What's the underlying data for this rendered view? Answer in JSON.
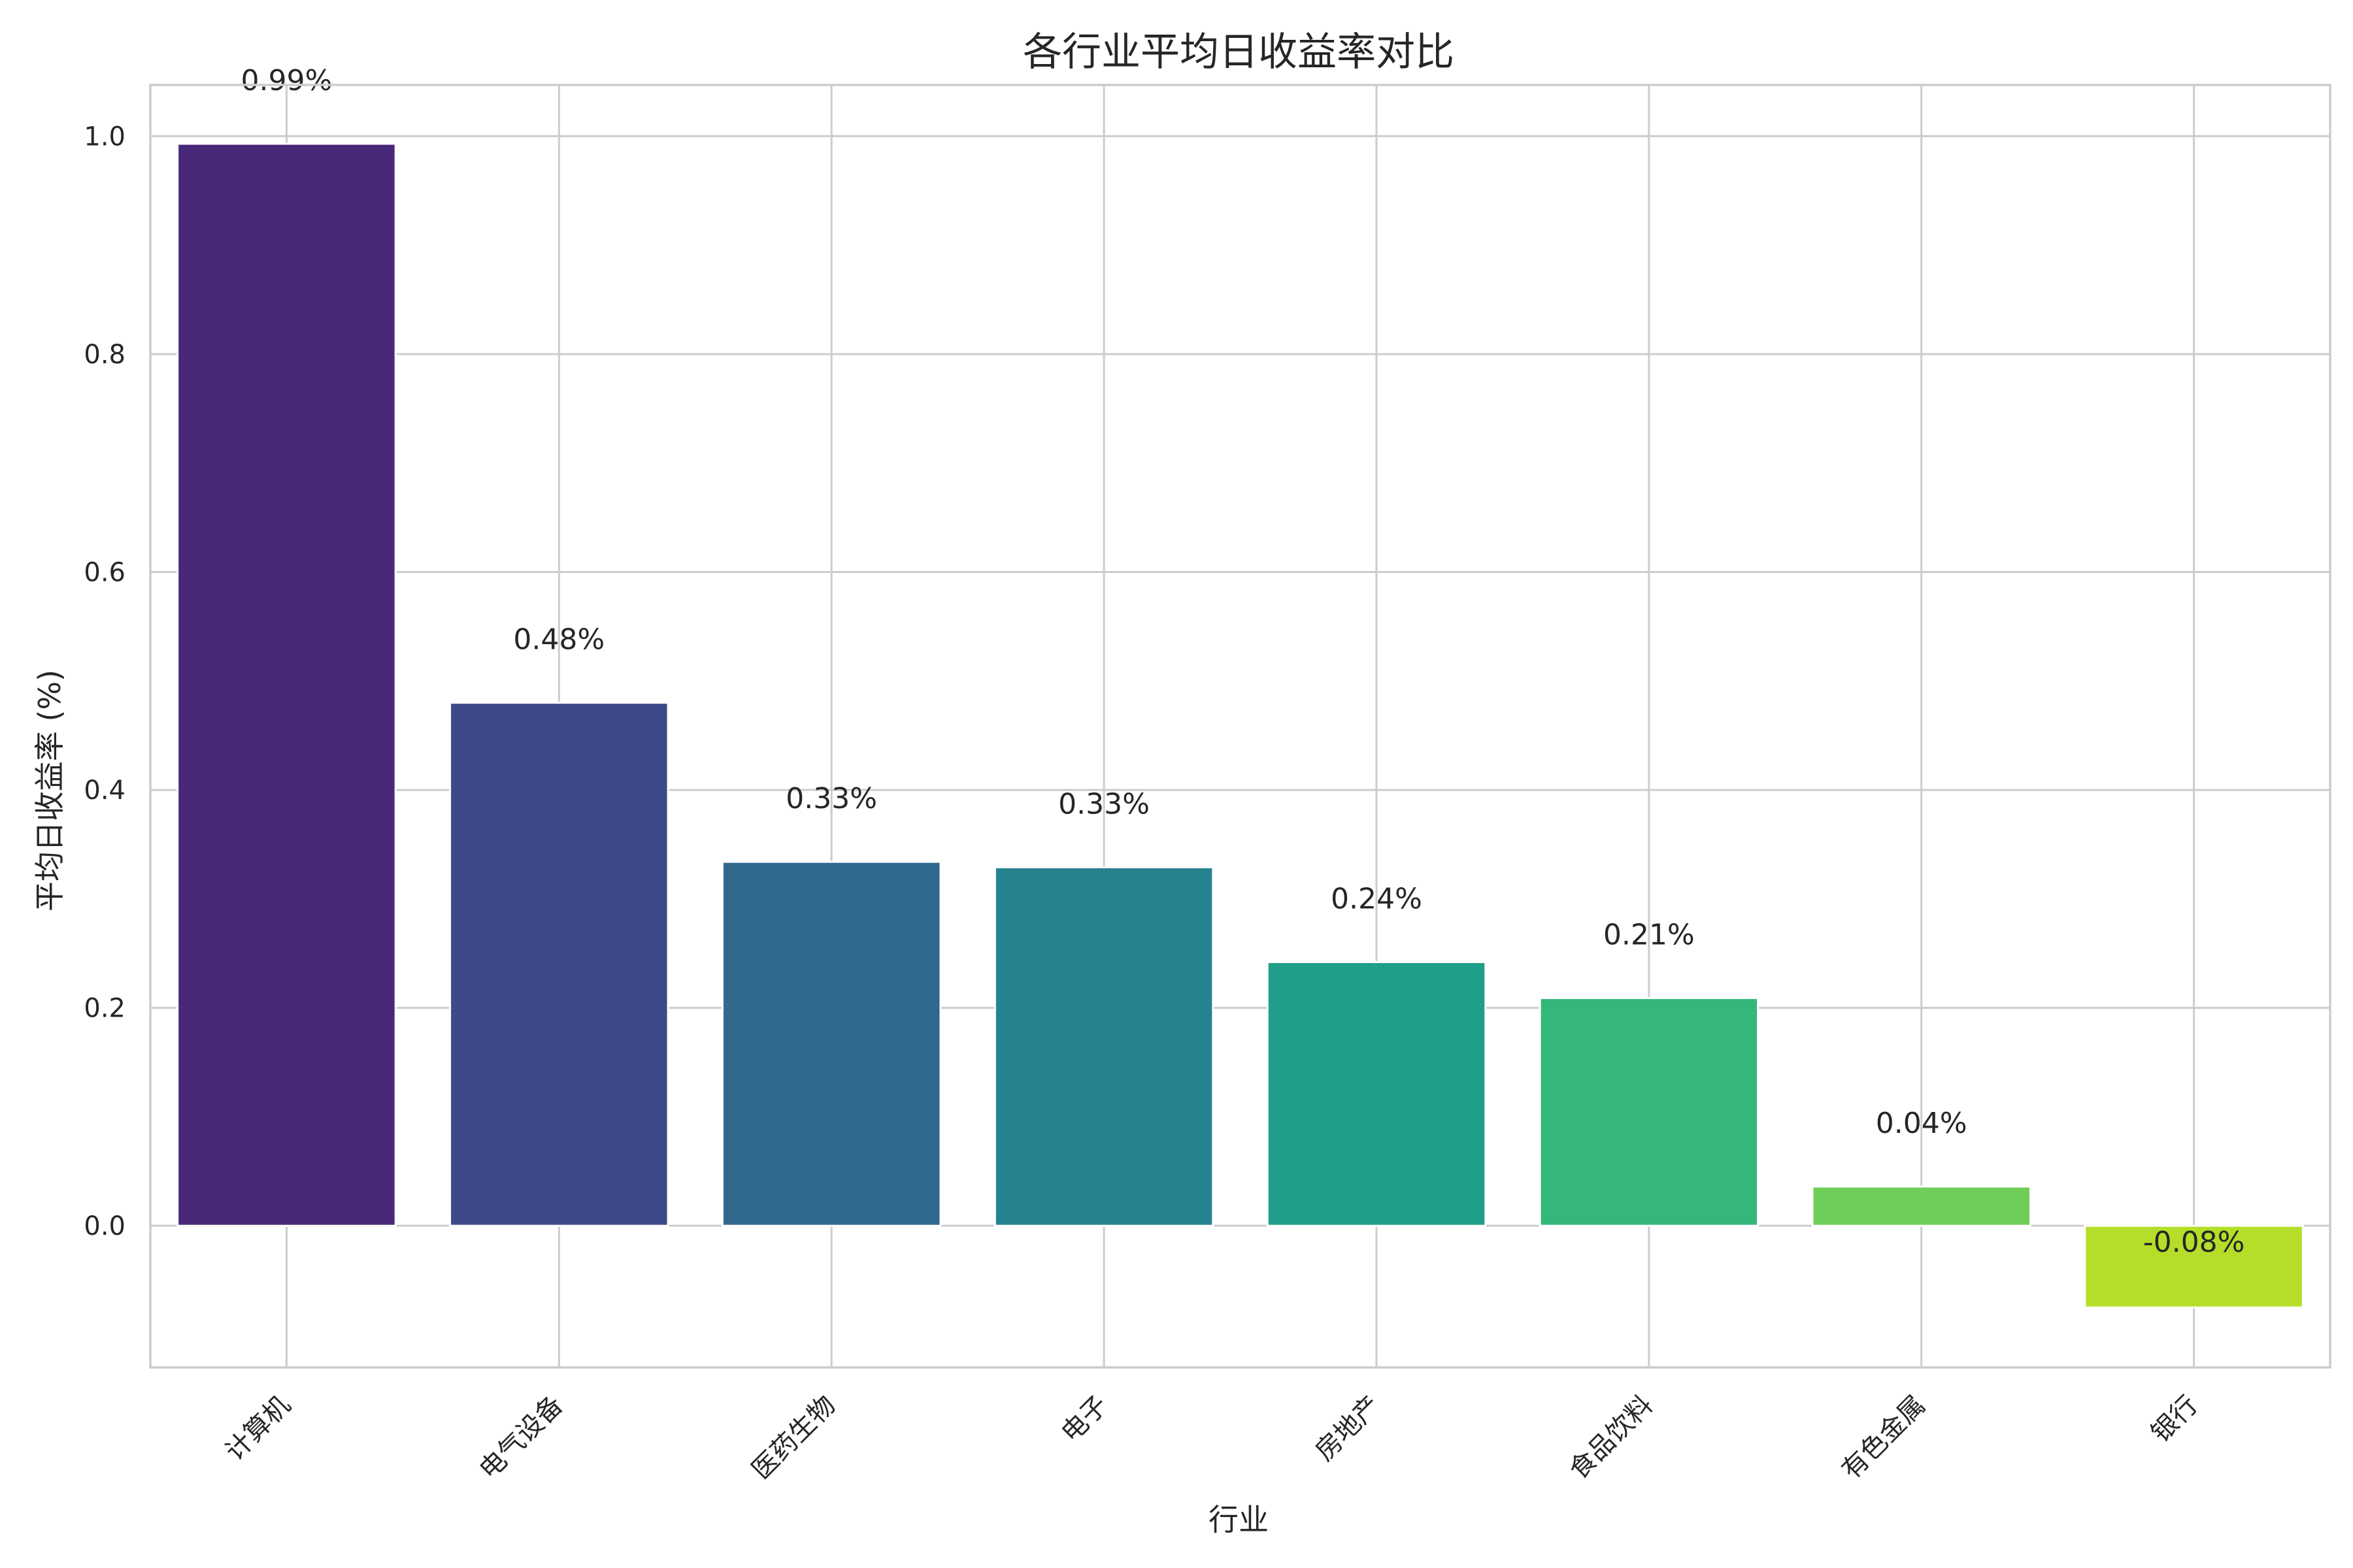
{
  "chart_data": {
    "type": "bar",
    "title": "各行业平均日收益率对比",
    "xlabel": "行业",
    "ylabel": "平均日收益率 (%)",
    "categories": [
      "计算机",
      "电气设备",
      "医药生物",
      "电子",
      "房地产",
      "食品饮料",
      "有色金属",
      "银行"
    ],
    "values": [
      0.993,
      0.48,
      0.334,
      0.329,
      0.242,
      0.209,
      0.036,
      -0.075
    ],
    "data_labels": [
      "0.99%",
      "0.48%",
      "0.33%",
      "0.33%",
      "0.24%",
      "0.21%",
      "0.04%",
      "-0.08%"
    ],
    "colors": [
      "#482878",
      "#3e4989",
      "#31688e",
      "#26828e",
      "#1f9e89",
      "#35b779",
      "#6ece58",
      "#b5de2b"
    ],
    "ylim": [
      -0.13,
      1.047
    ],
    "yticks": [
      0.0,
      0.2,
      0.4,
      0.6,
      0.8,
      1.0
    ],
    "ytick_labels": [
      "0.0",
      "0.2",
      "0.4",
      "0.6",
      "0.8",
      "1.0"
    ],
    "grid": true,
    "legend": false
  }
}
